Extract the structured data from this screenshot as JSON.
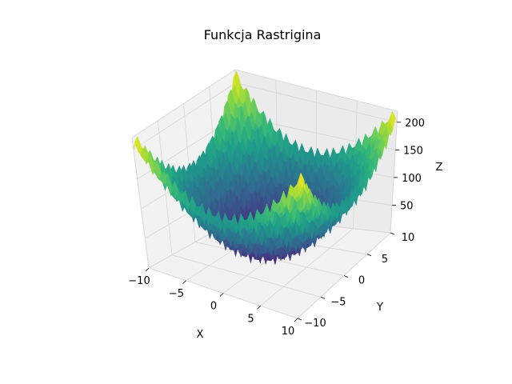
{
  "chart_data": {
    "type": "surface",
    "title": "Funkcja Rastrigina",
    "xlabel": "X",
    "ylabel": "Y",
    "zlabel": "Z",
    "xlim": [
      -10,
      10
    ],
    "ylim": [
      -10,
      10
    ],
    "zlim": [
      0,
      220
    ],
    "xticks": [
      "−10",
      "−5",
      "0",
      "5",
      "10"
    ],
    "yticks": [
      "−10",
      "−5",
      "0",
      "5",
      "10"
    ],
    "zticks": [
      "50",
      "100",
      "150",
      "200"
    ],
    "colormap": "viridis",
    "grid": true,
    "function": "Rastrigin",
    "A": 10,
    "z_min": 0,
    "z_max": 220
  },
  "colors": {
    "pane": "#f2f2f2",
    "pane_dark": "#ebebeb",
    "grid": "#d6d6d6",
    "viridis": [
      "#440154",
      "#482878",
      "#3e4989",
      "#31688e",
      "#26828e",
      "#1f9e89",
      "#35b779",
      "#6ece58",
      "#b5de2b",
      "#fde725"
    ]
  }
}
